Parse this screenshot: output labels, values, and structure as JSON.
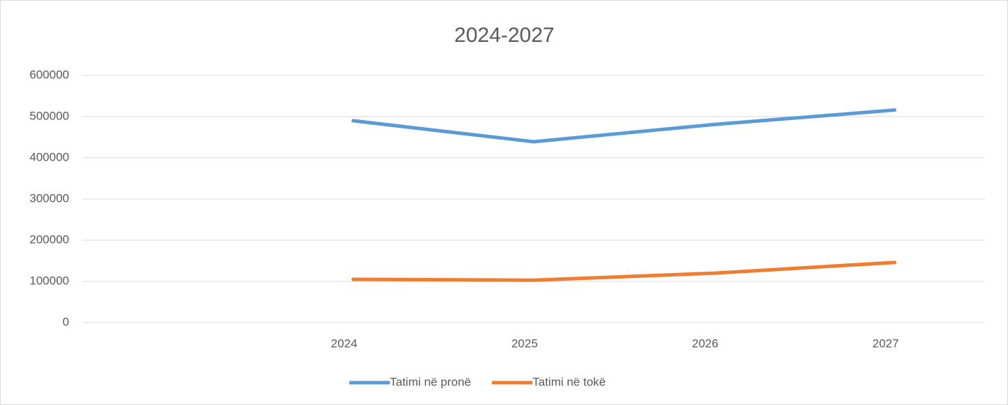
{
  "chart_data": {
    "type": "line",
    "title": "2024-2027",
    "categories": [
      null,
      "2024",
      "2025",
      "2026",
      "2027"
    ],
    "series": [
      {
        "name": "Tatimi në pronë",
        "color": "#5b9bd5",
        "values": [
          null,
          490000,
          439000,
          481000,
          516000
        ]
      },
      {
        "name": "Tatimi në tokë",
        "color": "#ed7d31",
        "values": [
          null,
          105000,
          103000,
          120000,
          146000
        ]
      }
    ],
    "ylim": [
      0,
      600000
    ],
    "yticks": [
      0,
      100000,
      200000,
      300000,
      400000,
      500000,
      600000
    ],
    "grid": true,
    "legend": "bottom"
  }
}
